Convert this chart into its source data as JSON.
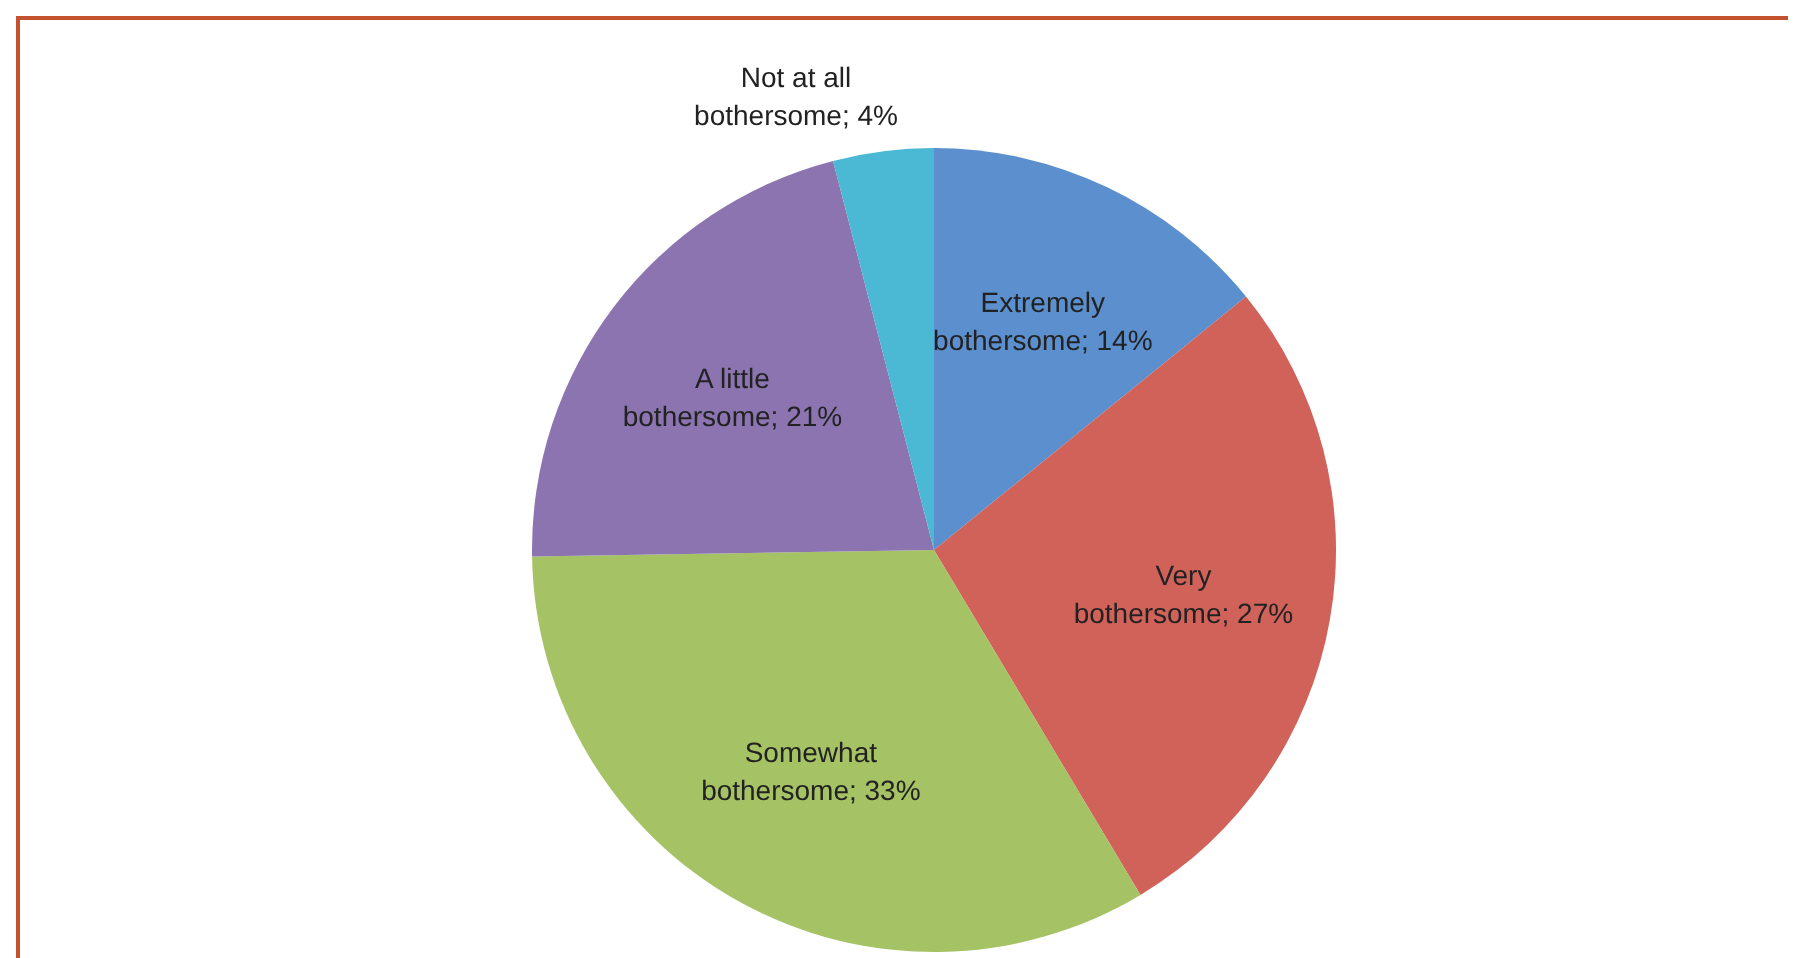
{
  "chart_data": {
    "type": "pie",
    "categories": [
      "Extremely bothersome",
      "Very bothersome",
      "Somewhat bothersome",
      "A little bothersome",
      "Not at all bothersome"
    ],
    "values": [
      14,
      27,
      33,
      21,
      4
    ],
    "value_labels": [
      "14%",
      "27%",
      "33%",
      "21%",
      "4%"
    ],
    "colors": [
      "#5b8fce",
      "#d0625a",
      "#a5c264",
      "#8b74b0",
      "#4bb8d4"
    ],
    "legend": false
  }
}
